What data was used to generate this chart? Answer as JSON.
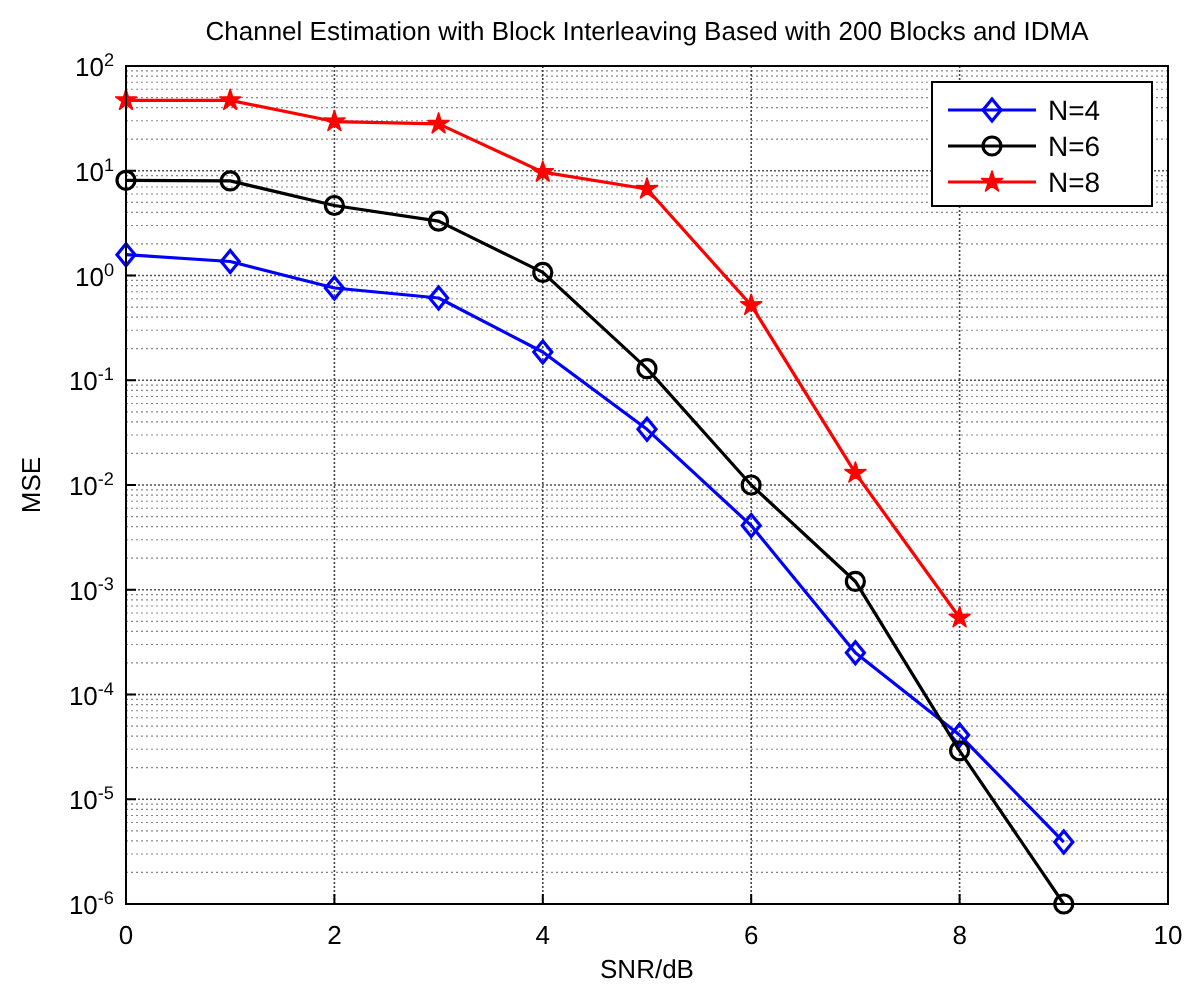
{
  "chart_data": {
    "type": "line",
    "title": "Channel Estimation with Block Interleaving Based with 200 Blocks and IDMA",
    "xlabel": "SNR/dB",
    "ylabel": "MSE",
    "log": "y",
    "grid": true,
    "legend": "top right",
    "line_style": "solid",
    "xlim": [
      0,
      10
    ],
    "xticks": [
      0,
      2,
      4,
      6,
      8,
      10
    ],
    "ylim": [
      1e-06,
      100
    ],
    "yticks": [
      {
        "value": 1e-06,
        "label": "10$^{-6}$"
      },
      {
        "value": 1e-05,
        "label": "10$^{-5}$"
      },
      {
        "value": 0.0001,
        "label": "10$^{-4}$"
      },
      {
        "value": 0.001,
        "label": "10$^{-3}$"
      },
      {
        "value": 0.01,
        "label": "10$^{-2}$"
      },
      {
        "value": 0.1,
        "label": "10$^{-1}$"
      },
      {
        "value": 1,
        "label": "10$^{0}$"
      },
      {
        "value": 10,
        "label": "10$^{1}$"
      },
      {
        "value": 100,
        "label": "10$^{2}$"
      }
    ],
    "series": [
      {
        "name": "N=4",
        "color": "#0000ff",
        "marker": "diamond",
        "x": [
          0,
          1,
          2,
          3,
          4,
          5,
          6,
          7,
          8,
          9
        ],
        "values": [
          1.58,
          1.36,
          0.76,
          0.61,
          0.186,
          0.034,
          0.0041,
          0.00025,
          4.1e-05,
          3.9e-06
        ]
      },
      {
        "name": "N=6",
        "color": "#000000",
        "marker": "circle",
        "x": [
          0,
          1,
          2,
          3,
          4,
          5,
          6,
          7,
          8,
          9
        ],
        "values": [
          8.1,
          8,
          4.66,
          3.3,
          1.07,
          0.129,
          0.01,
          0.0012,
          2.9e-05,
          1e-06
        ]
      },
      {
        "name": "N=8",
        "color": "#ff0000",
        "marker": "star",
        "x": [
          0,
          1,
          2,
          3,
          4,
          5,
          6,
          7,
          8
        ],
        "values": [
          47,
          47,
          29.5,
          28,
          9.7,
          6.7,
          0.52,
          0.013,
          0.00054
        ]
      }
    ]
  }
}
